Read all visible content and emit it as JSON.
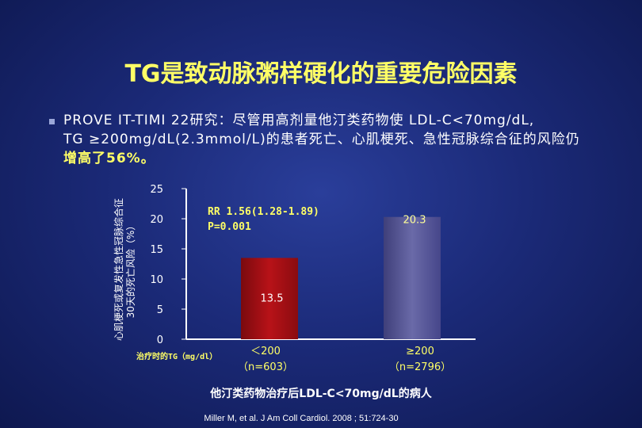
{
  "slide": {
    "title": "TG是致动脉粥样硬化的重要危险因素",
    "intro_line1": "PROVE IT-TIMI 22研究：尽管用高剂量他汀类药物使 LDL-C<70mg/dL,",
    "intro_line2": "TG ≥200mg/dL(2.3mmol/L)的患者死亡、心肌梗死、急性冠脉综合征的风险仍",
    "intro_highlight": "增高了56%。",
    "footer_label": "他汀类药物治疗后LDL-C<70mg/dL的病人",
    "citation": "Miller M, et al. J Am Coll Cardiol. 2008 ; 51:724-30"
  },
  "chart_data": {
    "type": "bar",
    "ylabel_line1": "心肌梗死或复发性急性冠脉综合征",
    "ylabel_line2": "30天的死亡风险（%）",
    "xlabel": "治疗时的TG（mg/dl）",
    "ylim": [
      0,
      25
    ],
    "yticks": [
      "0",
      "5",
      "10",
      "15",
      "20",
      "25"
    ],
    "categories": [
      {
        "label": "＜200",
        "n": "（n=603）"
      },
      {
        "label": "≥200",
        "n": "（n=2796）"
      }
    ],
    "values": [
      13.5,
      20.3
    ],
    "value_labels": [
      "13.5",
      "20.3"
    ],
    "bar_colors": [
      "#a80f14",
      "#5a5a96"
    ],
    "annotation_line1": "RR 1.56(1.28-1.89)",
    "annotation_line2": "P=0.001"
  }
}
